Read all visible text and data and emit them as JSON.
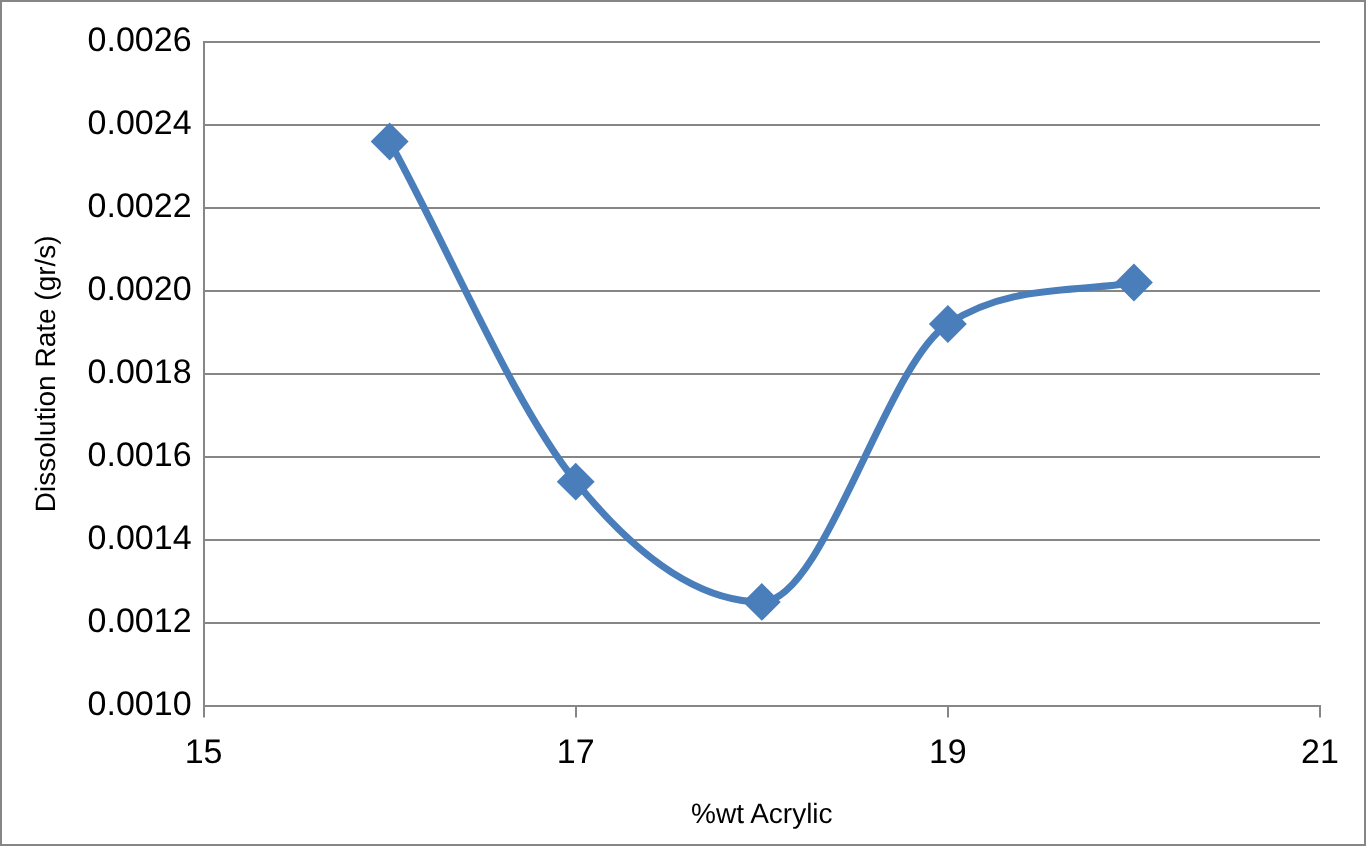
{
  "chart_data": {
    "type": "line",
    "xlabel": "%wt Acrylic",
    "ylabel": "Dissolution Rate (gr/s)",
    "x": [
      16,
      17,
      18,
      19,
      20
    ],
    "series": [
      {
        "color": "#4a7ebb",
        "values": [
          0.00236,
          0.00154,
          0.00125,
          0.00192,
          0.00202
        ]
      }
    ],
    "xlim": [
      15,
      21
    ],
    "xticks": [
      15,
      17,
      19,
      21
    ],
    "ylim": [
      0.001,
      0.0026
    ],
    "yticks": [
      {
        "value": 0.001,
        "label": "0.0010"
      },
      {
        "value": 0.0012,
        "label": "0.0012"
      },
      {
        "value": 0.0014,
        "label": "0.0014"
      },
      {
        "value": 0.0016,
        "label": "0.0016"
      },
      {
        "value": 0.0018,
        "label": "0.0018"
      },
      {
        "value": 0.002,
        "label": "0.0020"
      },
      {
        "value": 0.0022,
        "label": "0.0022"
      },
      {
        "value": 0.0024,
        "label": "0.0024"
      },
      {
        "value": 0.0026,
        "label": "0.0026"
      }
    ],
    "grid": "y",
    "marker": "diamond",
    "line_style": "solid",
    "legend": false
  }
}
